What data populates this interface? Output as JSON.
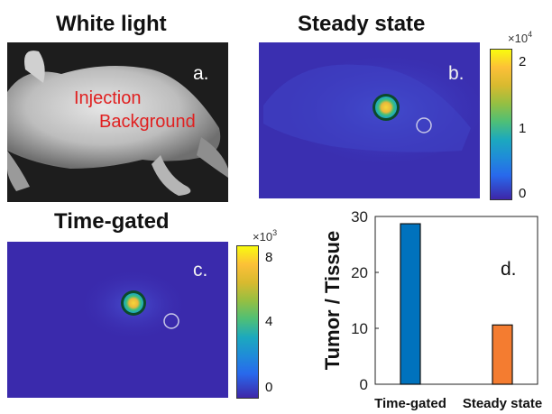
{
  "titles": {
    "white_light": "White light",
    "steady_state": "Steady state",
    "time_gated": "Time-gated"
  },
  "panel_labels": {
    "a": "a.",
    "b": "b.",
    "c": "c.",
    "d": "d."
  },
  "annotations": {
    "injection": "Injection",
    "background": "Background"
  },
  "colorbars": {
    "steady_state": {
      "multiplier": "×10",
      "exponent": "4",
      "ticks": [
        "2",
        "1",
        "0"
      ]
    },
    "time_gated": {
      "multiplier": "×10",
      "exponent": "3",
      "ticks": [
        "8",
        "4",
        "0"
      ]
    }
  },
  "colors": {
    "time_gated_bar": "#0072BD",
    "steady_state_bar": "#F47C30",
    "colormap": [
      "#3d26a8",
      "#2b6ce3",
      "#15a8c9",
      "#3bc080",
      "#c0be3a",
      "#f9e31d"
    ]
  },
  "chart_data": {
    "type": "bar",
    "categories": [
      "Time-gated",
      "Steady state"
    ],
    "values": [
      28.7,
      10.6
    ],
    "ylabel": "Tumor / Tissue",
    "xlabel": "",
    "ylim": [
      0,
      30
    ],
    "yticks": [
      0,
      10,
      20,
      30
    ],
    "grid": false
  }
}
